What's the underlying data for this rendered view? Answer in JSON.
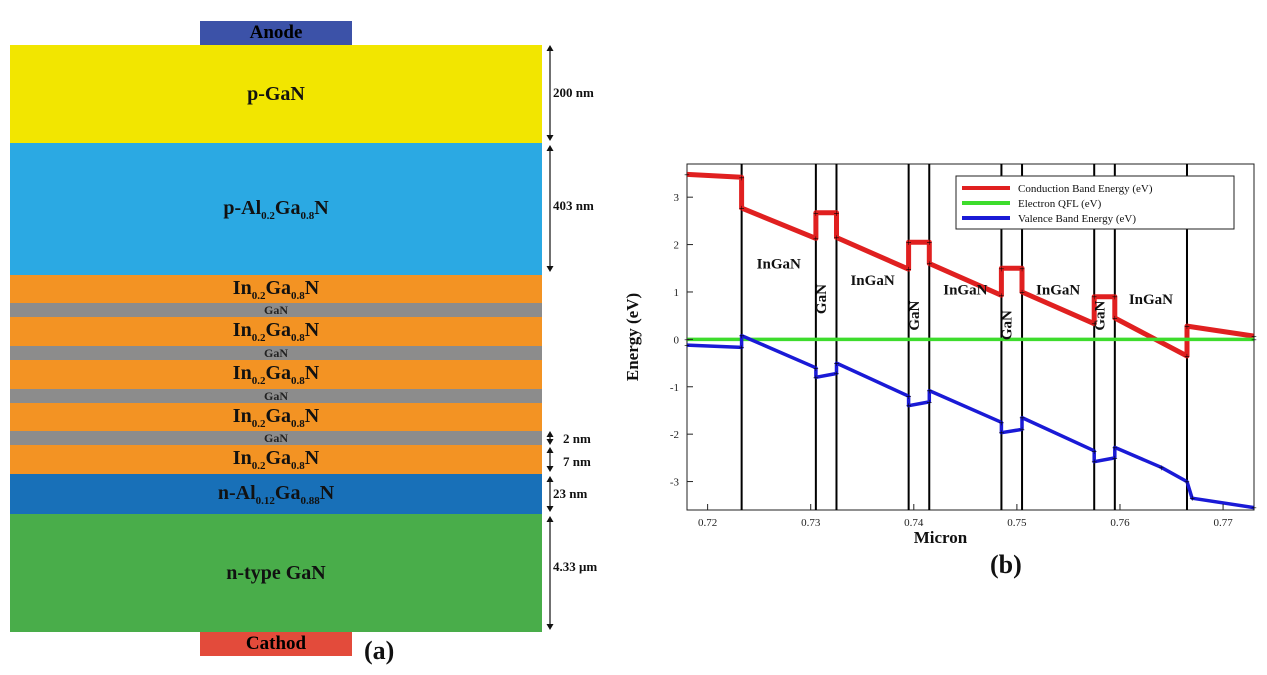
{
  "panel_a": {
    "label": "(a)",
    "anode": {
      "label": "Anode",
      "color": "#3c52a8"
    },
    "cathode": {
      "label": "Cathod",
      "color": "#e34b3b"
    },
    "layers": [
      {
        "id": "p-gan",
        "main": "p-GaN",
        "color": "#f2e600"
      },
      {
        "id": "p-algan",
        "pre": "p-Al",
        "s1": "0.2",
        "mid": "Ga",
        "s2": "0.8",
        "post": "N",
        "color": "#2ba9e3"
      },
      {
        "id": "ingan-1",
        "pre": "In",
        "s1": "0.2",
        "mid": "Ga",
        "s2": "0.8",
        "post": "N",
        "color": "#f39323"
      },
      {
        "id": "gan-1",
        "main": "GaN",
        "color": "#8c8c8c",
        "thin": true
      },
      {
        "id": "ingan-2",
        "pre": "In",
        "s1": "0.2",
        "mid": "Ga",
        "s2": "0.8",
        "post": "N",
        "color": "#f39323"
      },
      {
        "id": "gan-2",
        "main": "GaN",
        "color": "#8c8c8c",
        "thin": true
      },
      {
        "id": "ingan-3",
        "pre": "In",
        "s1": "0.2",
        "mid": "Ga",
        "s2": "0.8",
        "post": "N",
        "color": "#f39323"
      },
      {
        "id": "gan-3",
        "main": "GaN",
        "color": "#8c8c8c",
        "thin": true
      },
      {
        "id": "ingan-4",
        "pre": "In",
        "s1": "0.2",
        "mid": "Ga",
        "s2": "0.8",
        "post": "N",
        "color": "#f39323"
      },
      {
        "id": "gan-4",
        "main": "GaN",
        "color": "#8c8c8c",
        "thin": true
      },
      {
        "id": "ingan-5",
        "pre": "In",
        "s1": "0.2",
        "mid": "Ga",
        "s2": "0.8",
        "post": "N",
        "color": "#f39323"
      },
      {
        "id": "n-algan",
        "pre": "n-Al",
        "s1": "0.12",
        "mid": "Ga",
        "s2": "0.88",
        "post": "N",
        "color": "#1870b8"
      },
      {
        "id": "n-gan",
        "main": "n-type GaN",
        "color": "#49ad4a"
      }
    ],
    "dimensions": {
      "p_gan": "200 nm",
      "p_algan": "403 nm",
      "gan": "2 nm",
      "ingan": "7 nm",
      "n_algan": "23 nm",
      "n_gan": "4.33 μm"
    }
  },
  "panel_b": {
    "label": "(b)",
    "chart_data": {
      "type": "line",
      "xlabel": "Micron",
      "ylabel": "Energy (eV)",
      "xlim": [
        0.718,
        0.773
      ],
      "ylim": [
        -3.6,
        3.7
      ],
      "xticks": [
        "0.72",
        "0.73",
        "0.74",
        "0.75",
        "0.76",
        "0.77"
      ],
      "yticks": [
        "3",
        "2",
        "1",
        "0",
        "-1",
        "-2",
        "-3"
      ],
      "legend_position": "top-right",
      "vertical_lines": [
        0.7233,
        0.7305,
        0.7325,
        0.7395,
        0.7415,
        0.7485,
        0.7505,
        0.7575,
        0.7595,
        0.7665
      ],
      "region_labels": [
        {
          "text": "InGaN",
          "x": 0.7269,
          "y": 1.5,
          "vertical": false
        },
        {
          "text": "GaN",
          "x": 0.7315,
          "y": 0.85,
          "vertical": true
        },
        {
          "text": "InGaN",
          "x": 0.736,
          "y": 1.15,
          "vertical": false
        },
        {
          "text": "GaN",
          "x": 0.7405,
          "y": 0.5,
          "vertical": true
        },
        {
          "text": "InGaN",
          "x": 0.745,
          "y": 0.95,
          "vertical": false
        },
        {
          "text": "GaN",
          "x": 0.7495,
          "y": 0.3,
          "vertical": true
        },
        {
          "text": "InGaN",
          "x": 0.754,
          "y": 0.95,
          "vertical": false
        },
        {
          "text": "GaN",
          "x": 0.7585,
          "y": 0.5,
          "vertical": true
        },
        {
          "text": "InGaN",
          "x": 0.763,
          "y": 0.75,
          "vertical": false
        }
      ],
      "series": [
        {
          "name": "Conduction Band Energy (eV)",
          "color": "#e02020",
          "x": [
            0.718,
            0.7233,
            0.7233,
            0.7305,
            0.7305,
            0.7325,
            0.7325,
            0.7395,
            0.7395,
            0.7415,
            0.7415,
            0.7485,
            0.7485,
            0.7505,
            0.7505,
            0.7575,
            0.7575,
            0.7595,
            0.7595,
            0.7665,
            0.7665,
            0.773
          ],
          "y": [
            3.48,
            3.42,
            2.77,
            2.13,
            2.67,
            2.67,
            2.15,
            1.48,
            2.05,
            2.05,
            1.6,
            0.93,
            1.5,
            1.5,
            1.0,
            0.33,
            0.9,
            0.9,
            0.45,
            -0.35,
            0.28,
            0.07
          ]
        },
        {
          "name": "Electron QFL (eV)",
          "color": "#3ddc2c",
          "x": [
            0.718,
            0.773
          ],
          "y": [
            0.0,
            0.0
          ]
        },
        {
          "name": "Valence Band Energy (eV)",
          "color": "#1a1ad6",
          "x": [
            0.718,
            0.7233,
            0.7233,
            0.7305,
            0.7305,
            0.7325,
            0.7325,
            0.7395,
            0.7395,
            0.7415,
            0.7415,
            0.7485,
            0.7485,
            0.7505,
            0.7505,
            0.7575,
            0.7575,
            0.7595,
            0.7595,
            0.764,
            0.7665,
            0.767,
            0.773
          ],
          "y": [
            -0.12,
            -0.17,
            0.08,
            -0.6,
            -0.8,
            -0.72,
            -0.5,
            -1.2,
            -1.4,
            -1.32,
            -1.08,
            -1.75,
            -1.97,
            -1.9,
            -1.65,
            -2.35,
            -2.58,
            -2.5,
            -2.28,
            -2.7,
            -3.0,
            -3.35,
            -3.55
          ]
        }
      ]
    }
  }
}
